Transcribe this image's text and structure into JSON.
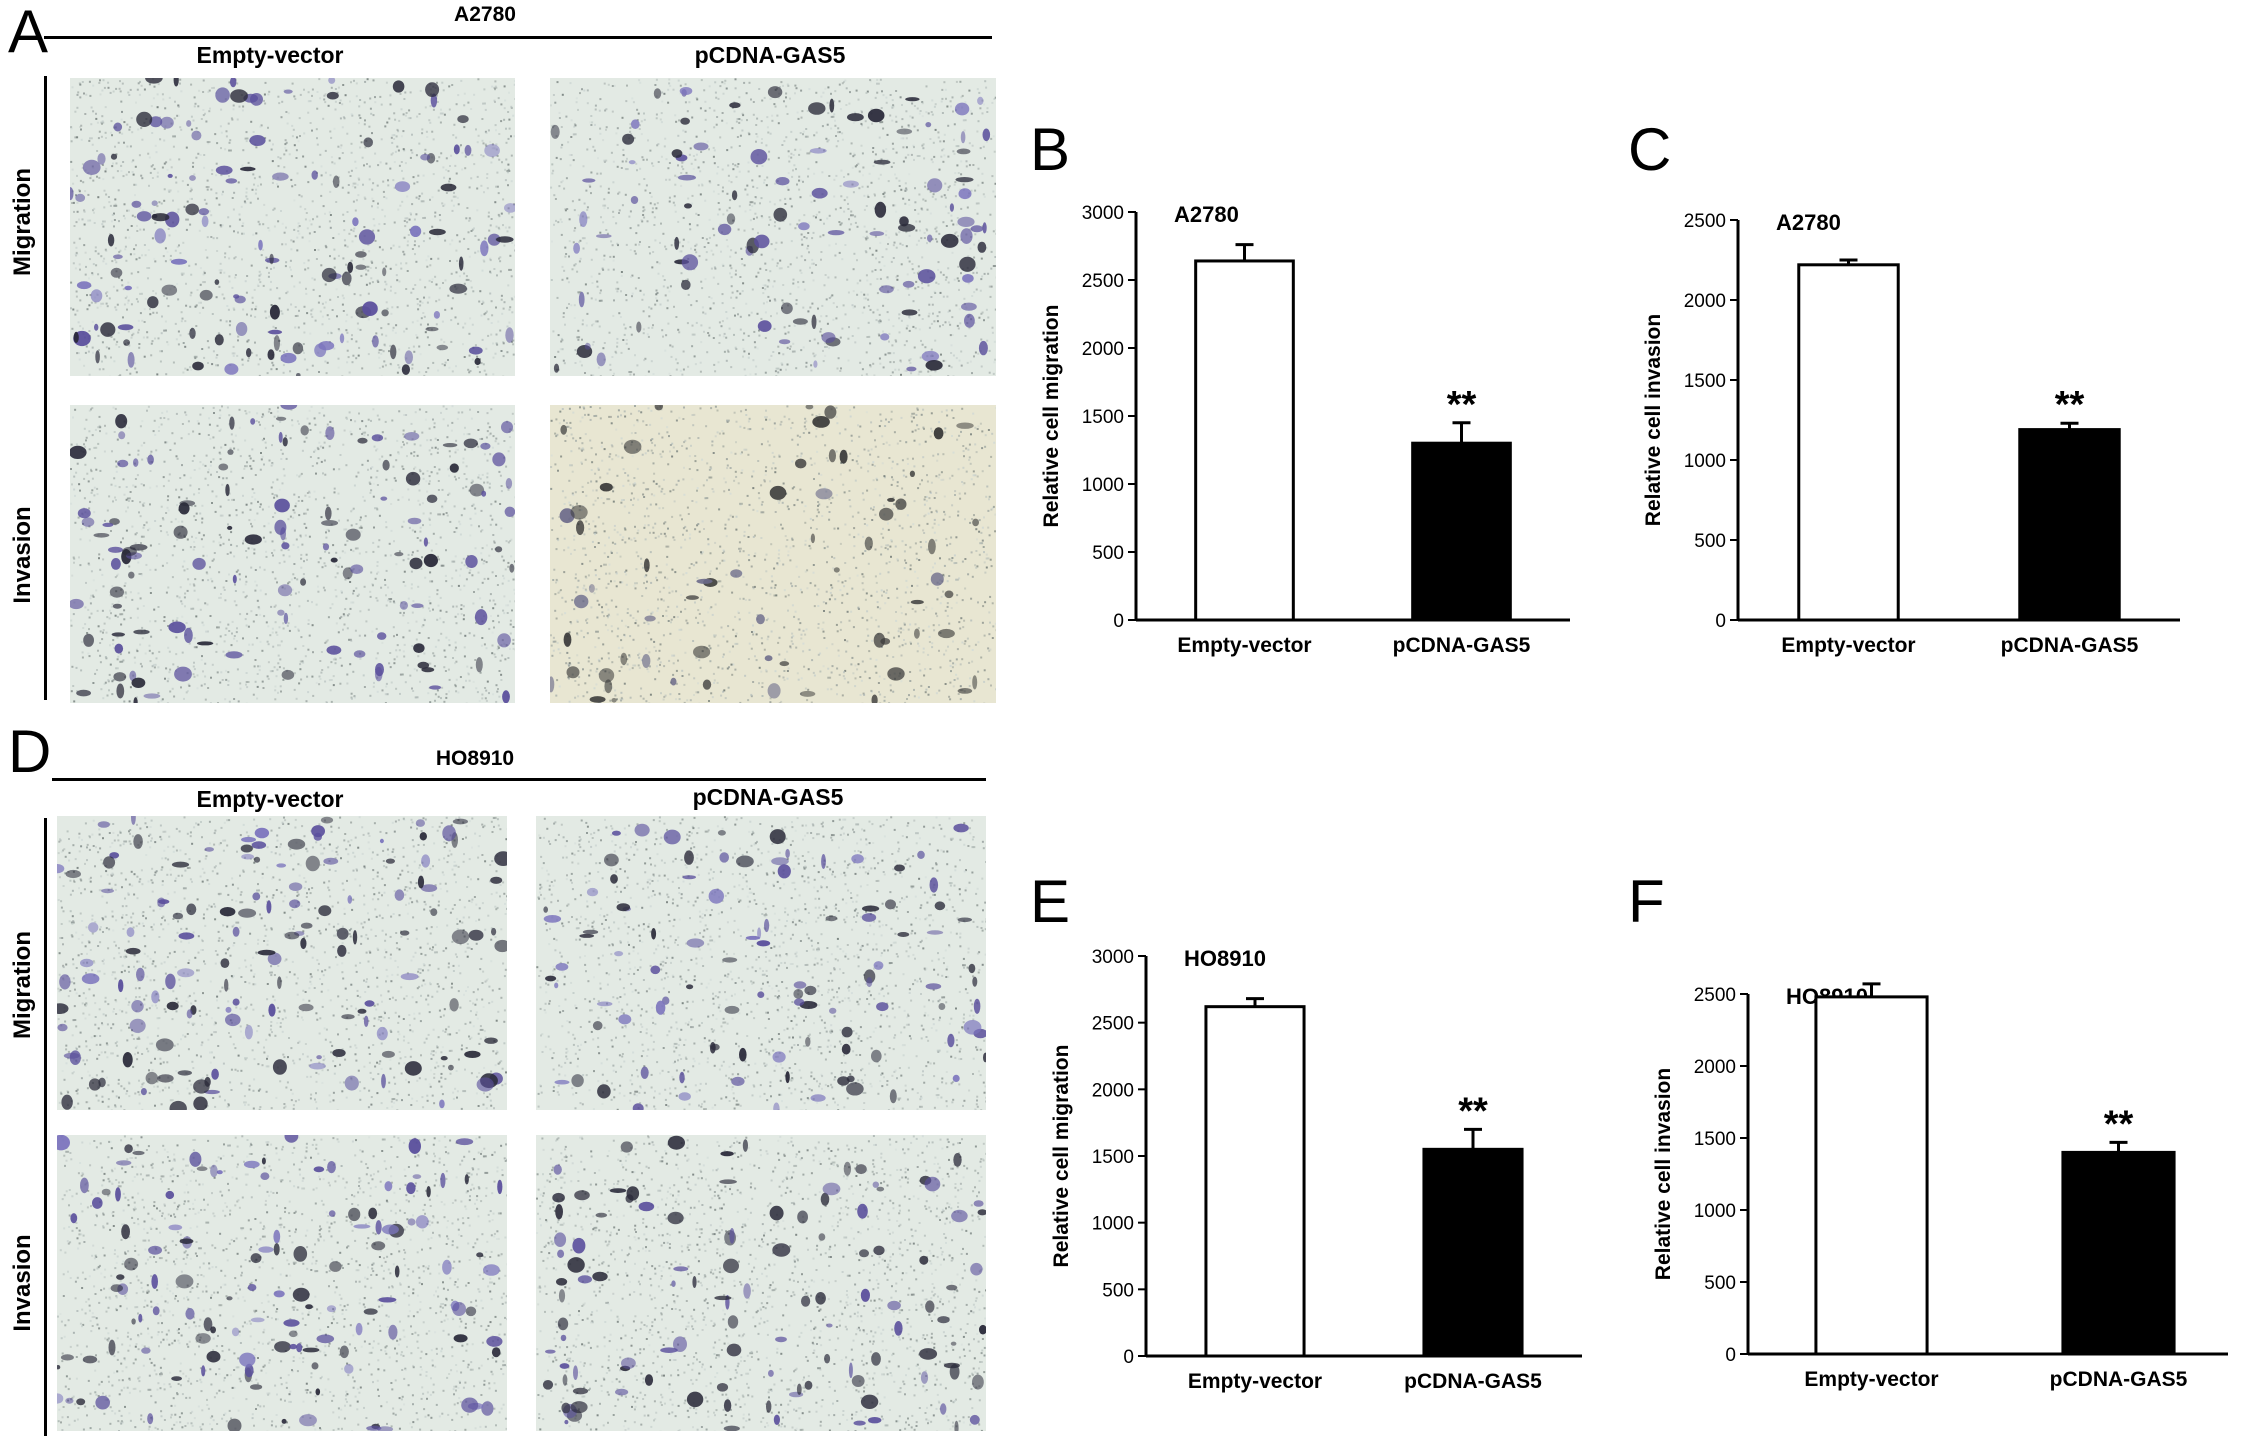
{
  "panels": {
    "A": {
      "letter": "A",
      "cell_line": "A2780",
      "columns": [
        "Empty-vector",
        "pCDNA-GAS5"
      ],
      "rows": [
        "Migration",
        "Invasion"
      ]
    },
    "D": {
      "letter": "D",
      "cell_line": "HO8910",
      "columns": [
        "Empty-vector",
        "pCDNA-GAS5"
      ],
      "rows": [
        "Migration",
        "Invasion"
      ]
    }
  },
  "colors": {
    "control_fill": "#ffffff",
    "treated_fill": "#000000",
    "stain_purple": "#5a4f9c",
    "stain_dark": "#2a2a3a",
    "background_field": "#e3eae4",
    "gray_field": "#e8e6d2"
  },
  "chart_data": [
    {
      "panel": "B",
      "type": "bar",
      "title": "A2780",
      "ylabel": "Relative cell migration",
      "xlabel": "",
      "categories": [
        "Empty-vector",
        "pCDNA-GAS5"
      ],
      "values": [
        2640,
        1300
      ],
      "errors": [
        120,
        150
      ],
      "significance": [
        "",
        "**"
      ],
      "ylim": [
        0,
        3000
      ],
      "yticks": [
        0,
        500,
        1000,
        1500,
        2000,
        2500,
        3000
      ]
    },
    {
      "panel": "C",
      "type": "bar",
      "title": "A2780",
      "ylabel": "Relative cell invasion",
      "xlabel": "",
      "categories": [
        "Empty-vector",
        "pCDNA-GAS5"
      ],
      "values": [
        2220,
        1190
      ],
      "errors": [
        30,
        40
      ],
      "significance": [
        "",
        "**"
      ],
      "ylim": [
        0,
        2500
      ],
      "yticks": [
        0,
        500,
        1000,
        1500,
        2000,
        2500
      ]
    },
    {
      "panel": "E",
      "type": "bar",
      "title": "HO8910",
      "ylabel": "Relative cell migration",
      "xlabel": "",
      "categories": [
        "Empty-vector",
        "pCDNA-GAS5"
      ],
      "values": [
        2620,
        1550
      ],
      "errors": [
        60,
        150
      ],
      "significance": [
        "",
        "**"
      ],
      "ylim": [
        0,
        3000
      ],
      "yticks": [
        0,
        500,
        1000,
        1500,
        2000,
        2500,
        3000
      ]
    },
    {
      "panel": "F",
      "type": "bar",
      "title": "HO8910",
      "ylabel": "Relative cell invasion",
      "xlabel": "",
      "categories": [
        "Empty-vector",
        "pCDNA-GAS5"
      ],
      "values": [
        2480,
        1400
      ],
      "errors": [
        90,
        70
      ],
      "significance": [
        "",
        "**"
      ],
      "ylim": [
        0,
        2500
      ],
      "yticks": [
        0,
        500,
        1000,
        1500,
        2000,
        2500
      ]
    }
  ]
}
